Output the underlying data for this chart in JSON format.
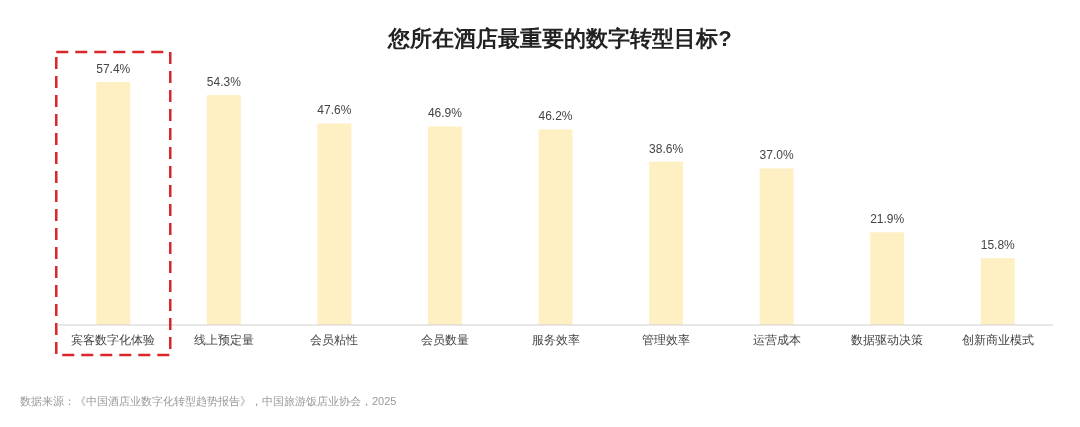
{
  "chart_data": {
    "type": "bar",
    "title": "您所在酒店最重要的数字转型目标?",
    "categories": [
      "宾客数字化体验",
      "线上预定量",
      "会员粘性",
      "会员数量",
      "服务效率",
      "管理效率",
      "运营成本",
      "数据驱动决策",
      "创新商业模式"
    ],
    "values": [
      57.4,
      54.3,
      47.6,
      46.9,
      46.2,
      38.6,
      37.0,
      21.9,
      15.8
    ],
    "value_labels": [
      "57.4%",
      "54.3%",
      "47.6%",
      "46.9%",
      "46.2%",
      "38.6%",
      "37.0%",
      "21.9%",
      "15.8%"
    ],
    "color": "#fff0c4",
    "annotations": [
      "数据来源：《中国酒店业数字化转型趋势报告》，中国旅游饭店业协会，2025"
    ]
  }
}
